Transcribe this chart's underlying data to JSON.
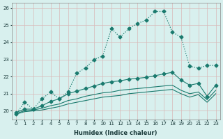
{
  "xlabel": "Humidex (Indice chaleur)",
  "background_color": "#d8f0ee",
  "grid_color": "#e8c8c8",
  "line_color": "#1a7a6e",
  "xlim": [
    -0.5,
    23.5
  ],
  "ylim": [
    19.5,
    26.3
  ],
  "yticks": [
    20,
    21,
    22,
    23,
    24,
    25,
    26
  ],
  "xticks": [
    0,
    1,
    2,
    3,
    4,
    5,
    6,
    7,
    8,
    9,
    10,
    11,
    12,
    13,
    14,
    15,
    16,
    17,
    18,
    19,
    20,
    21,
    22,
    23
  ],
  "series1_x": [
    0,
    1,
    2,
    3,
    4,
    5,
    6,
    7,
    8,
    9,
    10,
    11,
    12,
    13,
    14,
    15,
    16,
    17,
    18,
    19,
    20,
    21,
    22,
    23
  ],
  "series1_y": [
    19.8,
    20.5,
    20.1,
    20.7,
    21.1,
    20.7,
    21.1,
    22.2,
    22.5,
    23.0,
    23.2,
    24.8,
    24.3,
    24.8,
    25.1,
    25.3,
    25.8,
    25.8,
    24.6,
    24.3,
    22.6,
    22.5,
    22.65,
    22.65
  ],
  "series2_x": [
    0,
    1,
    2,
    3,
    4,
    5,
    6,
    7,
    8,
    9,
    10,
    11,
    12,
    13,
    14,
    15,
    16,
    17,
    18,
    19,
    20,
    21,
    22,
    23
  ],
  "series2_y": [
    19.9,
    20.1,
    20.1,
    20.3,
    20.55,
    20.7,
    21.0,
    21.15,
    21.3,
    21.45,
    21.6,
    21.7,
    21.75,
    21.85,
    21.9,
    21.95,
    22.05,
    22.15,
    22.25,
    21.8,
    21.5,
    21.6,
    20.85,
    21.5
  ],
  "series3_x": [
    0,
    1,
    2,
    3,
    4,
    5,
    6,
    7,
    8,
    9,
    10,
    11,
    12,
    13,
    14,
    15,
    16,
    17,
    18,
    19,
    20,
    21,
    22,
    23
  ],
  "series3_y": [
    19.85,
    20.0,
    20.05,
    20.15,
    20.3,
    20.4,
    20.6,
    20.7,
    20.85,
    20.95,
    21.05,
    21.1,
    21.2,
    21.25,
    21.3,
    21.35,
    21.4,
    21.45,
    21.5,
    21.2,
    21.0,
    21.1,
    20.65,
    21.2
  ],
  "series4_x": [
    0,
    1,
    2,
    3,
    4,
    5,
    6,
    7,
    8,
    9,
    10,
    11,
    12,
    13,
    14,
    15,
    16,
    17,
    18,
    19,
    20,
    21,
    22,
    23
  ],
  "series4_y": [
    19.8,
    19.95,
    20.0,
    20.05,
    20.15,
    20.25,
    20.4,
    20.5,
    20.6,
    20.7,
    20.8,
    20.85,
    20.9,
    21.0,
    21.05,
    21.1,
    21.15,
    21.2,
    21.25,
    21.0,
    20.8,
    20.95,
    20.5,
    21.0
  ]
}
